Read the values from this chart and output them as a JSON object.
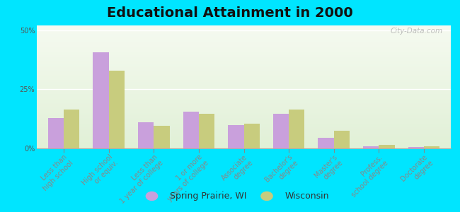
{
  "title": "Educational Attainment in 2000",
  "categories": [
    "Less than\nhigh school",
    "High school\nor equiv.",
    "Less than\n1 year of college",
    "1 or more\nyears of college",
    "Associate\ndegree",
    "Bachelor's\ndegree",
    "Master's\ndegree",
    "Profess.\nschool degree",
    "Doctorate\ndegree"
  ],
  "spring_prairie": [
    13.0,
    40.5,
    11.0,
    15.5,
    10.0,
    14.5,
    4.5,
    1.0,
    0.5
  ],
  "wisconsin": [
    16.5,
    33.0,
    9.5,
    14.5,
    10.5,
    16.5,
    7.5,
    1.5,
    1.0
  ],
  "color_spring": "#c9a0dc",
  "color_wisconsin": "#c8cc7e",
  "yticks": [
    0,
    25,
    50
  ],
  "ylim": [
    0,
    52
  ],
  "background_outer": "#00e5ff",
  "watermark": "City-Data.com",
  "legend_spring": "Spring Prairie, WI",
  "legend_wisconsin": "Wisconsin",
  "title_fontsize": 14,
  "tick_fontsize": 7.0
}
